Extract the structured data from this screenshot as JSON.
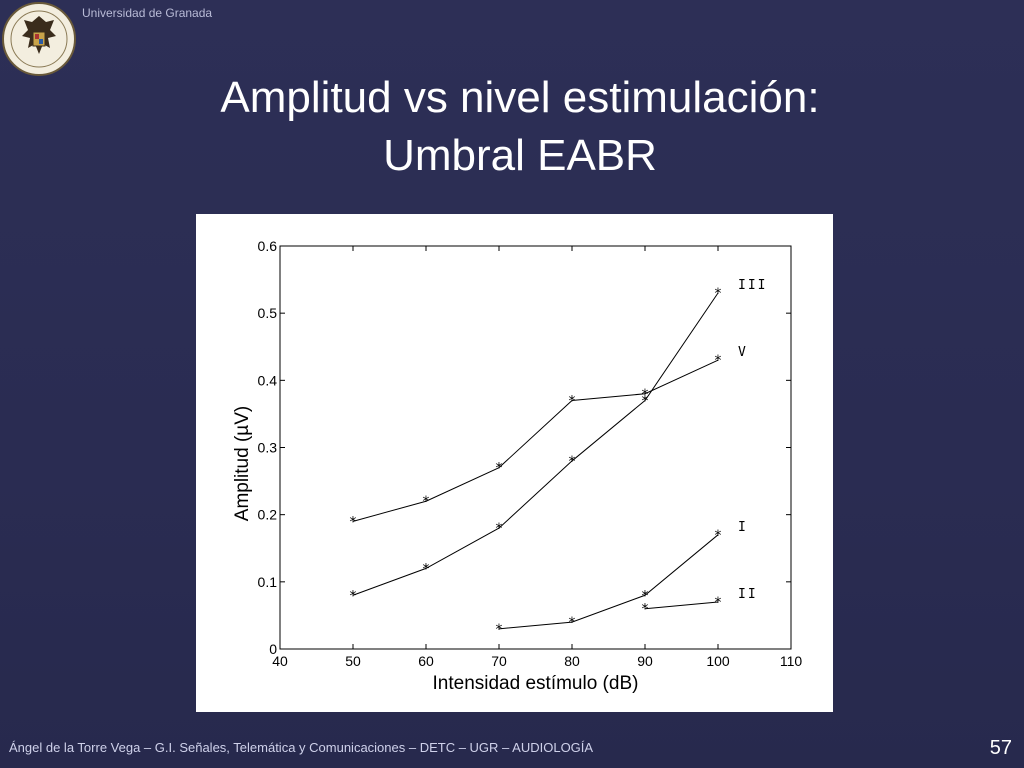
{
  "header": {
    "university": "Universidad de Granada",
    "logo_icon": "university-seal-icon"
  },
  "slide": {
    "title_line1": "Amplitud vs nivel estimulación:",
    "title_line2": "Umbral EABR",
    "page_number": "57"
  },
  "footer": {
    "author": "Ángel de la Torre Vega – G.I. Señales, Telemática y Comunicaciones – DETC – UGR – AUDIOLOGÍA"
  },
  "colors": {
    "background": "#2c2e55",
    "plot_background": "#ffffff",
    "line": "#000000"
  },
  "chart_data": {
    "type": "line",
    "xlabel": "Intensidad estímulo (dB)",
    "ylabel": "Amplitud (µV)",
    "xlim": [
      40,
      110
    ],
    "ylim": [
      0,
      0.6
    ],
    "xticks": [
      40,
      50,
      60,
      70,
      80,
      90,
      100,
      110
    ],
    "yticks": [
      0,
      0.1,
      0.2,
      0.3,
      0.4,
      0.5,
      0.6
    ],
    "ytick_labels": [
      "0",
      "0.1",
      "0.2",
      "0.3",
      "0.4",
      "0.5",
      "0.6"
    ],
    "grid": false,
    "marker": "asterisk",
    "series": [
      {
        "name": "III",
        "x": [
          50,
          60,
          70,
          80,
          90,
          100
        ],
        "y": [
          0.08,
          0.12,
          0.18,
          0.28,
          0.37,
          0.53
        ]
      },
      {
        "name": "V",
        "x": [
          50,
          60,
          70,
          80,
          90,
          100
        ],
        "y": [
          0.19,
          0.22,
          0.27,
          0.37,
          0.38,
          0.43
        ]
      },
      {
        "name": "I",
        "x": [
          70,
          80,
          90,
          100
        ],
        "y": [
          0.03,
          0.04,
          0.08,
          0.17
        ]
      },
      {
        "name": "II",
        "x": [
          90,
          100
        ],
        "y": [
          0.06,
          0.07
        ]
      }
    ]
  }
}
